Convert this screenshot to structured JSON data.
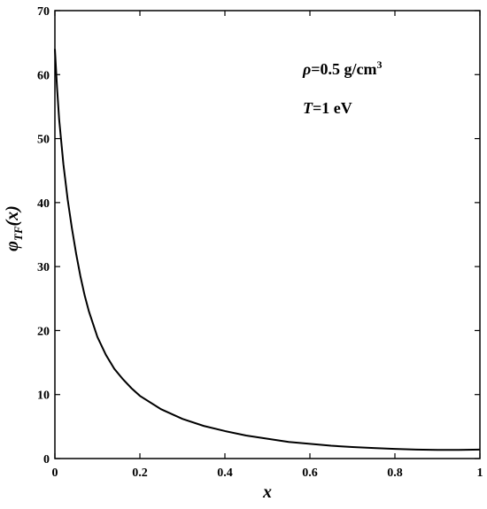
{
  "chart_data": {
    "type": "line",
    "title": "",
    "xlabel": "x",
    "ylabel": {
      "base": "φ",
      "subscript": "TF",
      "argument": "(x)"
    },
    "xlim": [
      0,
      1
    ],
    "ylim": [
      0,
      70
    ],
    "x_ticks": [
      0,
      0.2,
      0.4,
      0.6,
      0.8,
      1
    ],
    "x_tick_labels": [
      "0",
      "0.2",
      "0.4",
      "0.6",
      "0.8",
      "1"
    ],
    "y_ticks": [
      0,
      10,
      20,
      30,
      40,
      50,
      60,
      70
    ],
    "y_tick_labels": [
      "0",
      "10",
      "20",
      "30",
      "40",
      "50",
      "60",
      "70"
    ],
    "grid": false,
    "legend": "none",
    "line_color": "#000000",
    "series": [
      {
        "x": [
          0,
          0.005,
          0.01,
          0.02,
          0.03,
          0.04,
          0.05,
          0.06,
          0.07,
          0.08,
          0.09,
          0.1,
          0.12,
          0.14,
          0.16,
          0.18,
          0.2,
          0.25,
          0.3,
          0.35,
          0.4,
          0.45,
          0.5,
          0.55,
          0.6,
          0.65,
          0.7,
          0.75,
          0.8,
          0.85,
          0.9,
          0.95,
          1
        ],
        "y": [
          64,
          58,
          53,
          46,
          40.5,
          36,
          32,
          28.5,
          25.5,
          23,
          21,
          19,
          16.2,
          14,
          12.4,
          11,
          9.8,
          7.7,
          6.2,
          5.1,
          4.3,
          3.6,
          3.1,
          2.6,
          2.3,
          2.0,
          1.8,
          1.65,
          1.5,
          1.4,
          1.35,
          1.35,
          1.4
        ]
      }
    ],
    "annotations": [
      {
        "lines": [
          {
            "symbol": "ρ",
            "text": "=0.5 g/cm",
            "superscript": "3"
          },
          {
            "symbol": "T",
            "text": "=1 eV"
          }
        ]
      }
    ]
  }
}
